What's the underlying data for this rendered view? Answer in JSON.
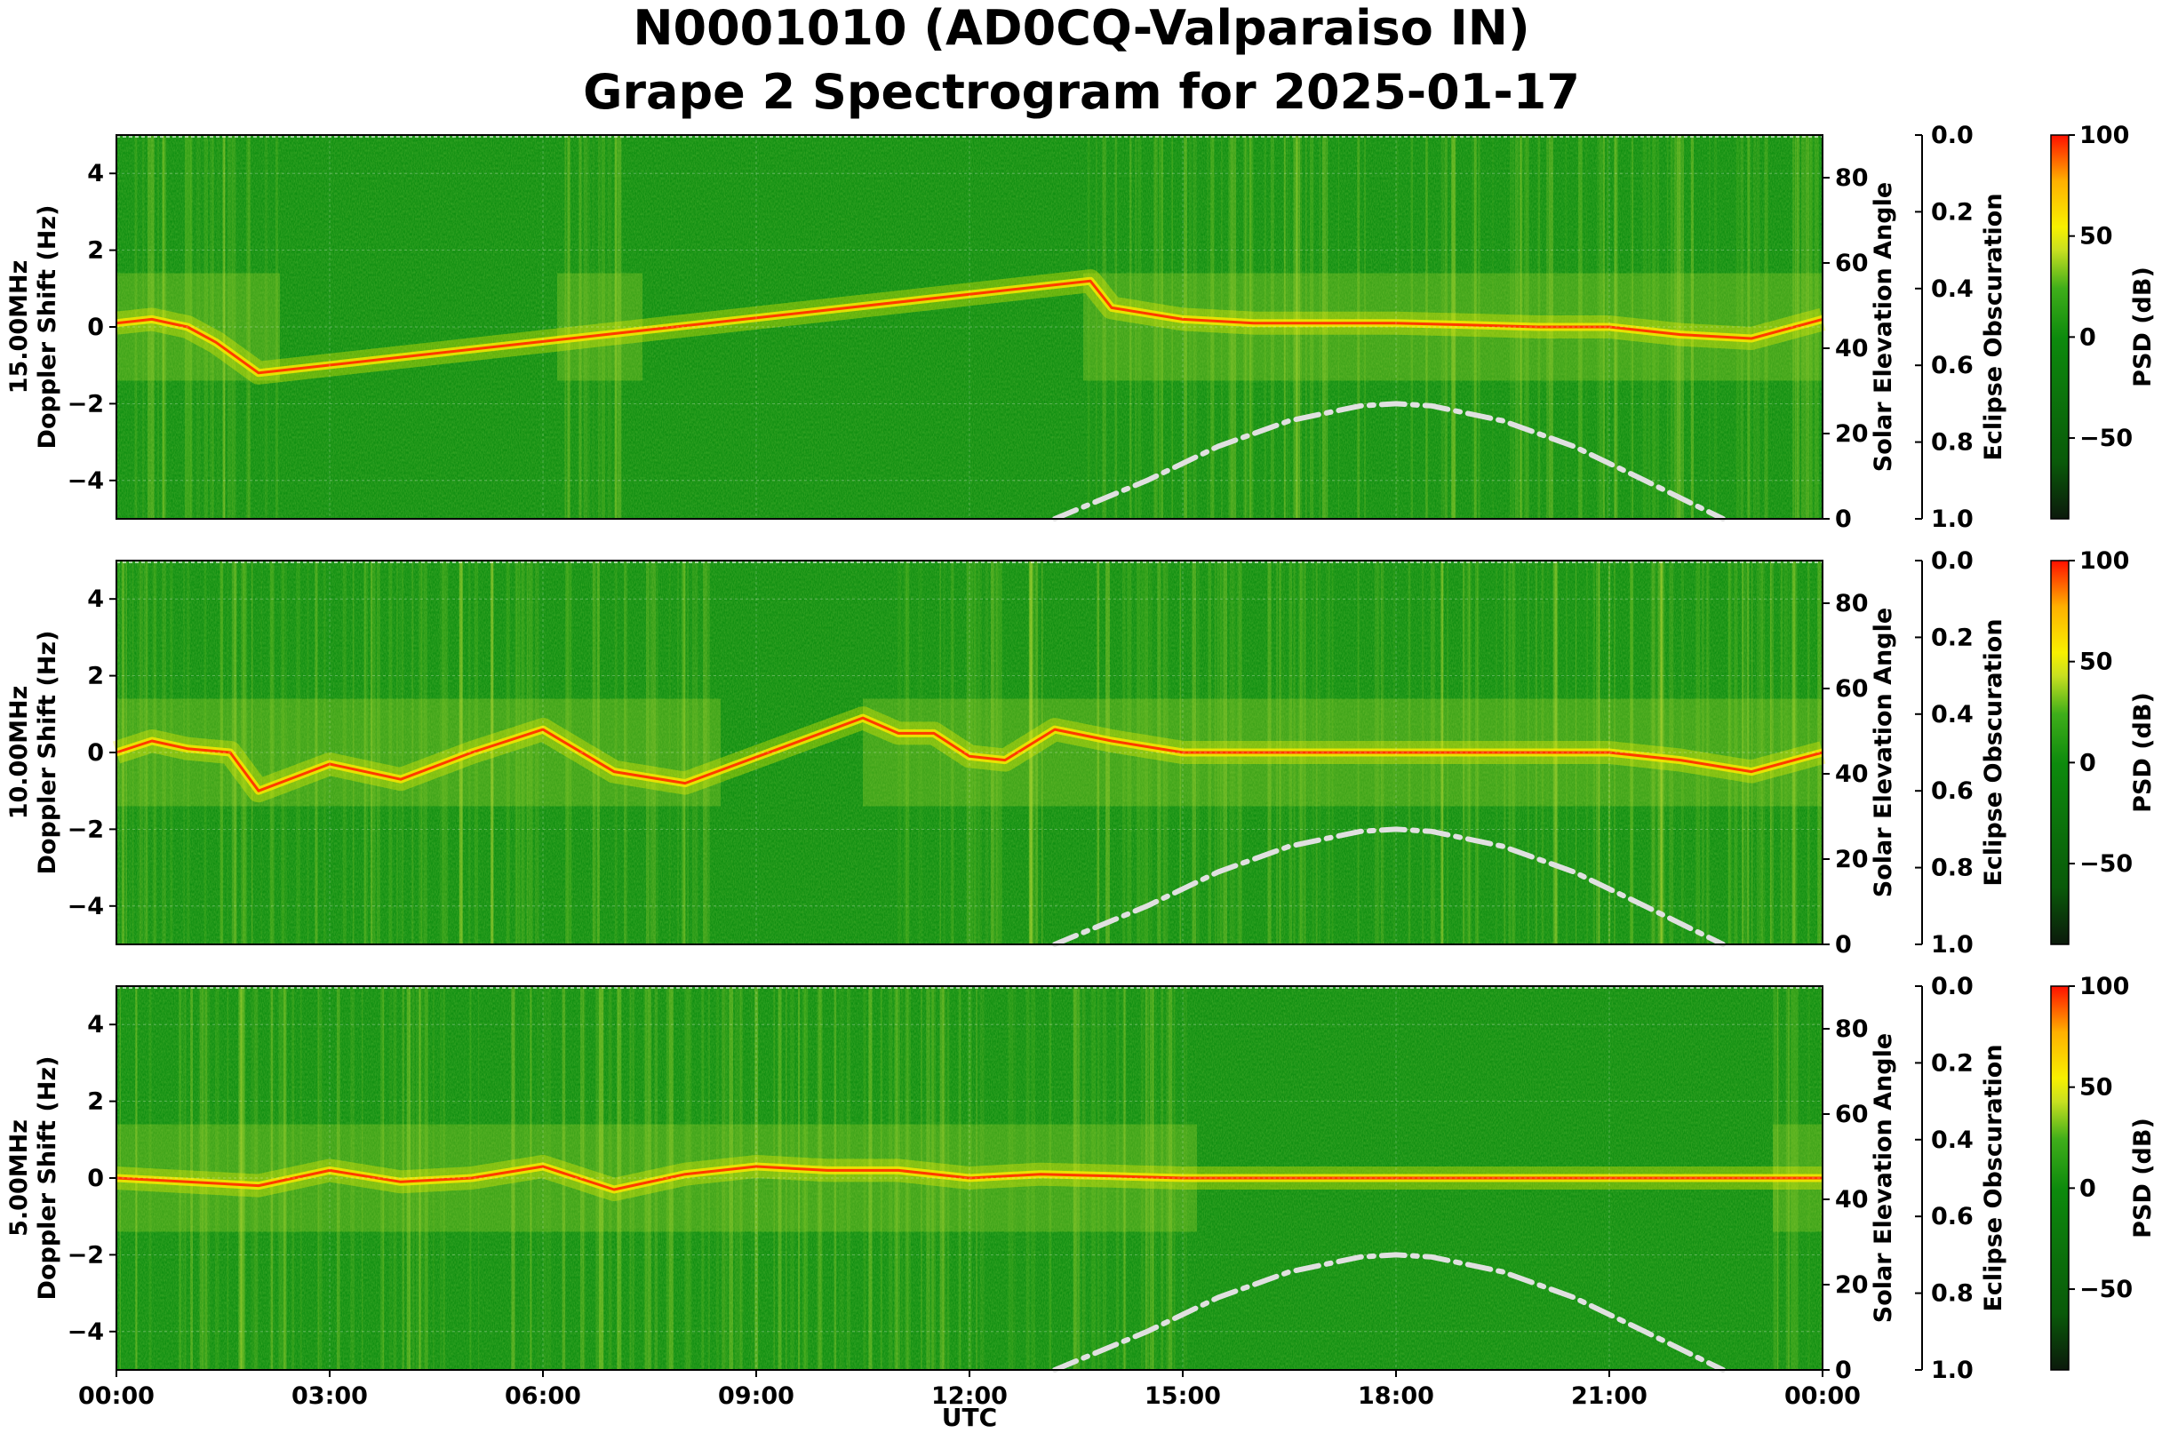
{
  "chart_data": {
    "type": "heatmap",
    "title_line1": "N0001010 (AD0CQ-Valparaiso IN)",
    "title_line2": "Grape 2 Spectrogram for 2025-01-17",
    "xlabel": "UTC",
    "x_ticks": [
      "00:00",
      "03:00",
      "06:00",
      "09:00",
      "12:00",
      "15:00",
      "18:00",
      "21:00",
      "00:00"
    ],
    "xlim_hours": [
      0,
      24
    ],
    "ylim_doppler_hz": [
      -5,
      5
    ],
    "y_ticks": [
      "4",
      "2",
      "0",
      "−2",
      "−4"
    ],
    "right_axis_label": "Solar Elevation Angle",
    "right_axis_ticks": [
      "80",
      "60",
      "40",
      "20",
      "0"
    ],
    "right_axis_range": [
      0,
      90
    ],
    "obscuration_label": "Eclipse Obscuration",
    "obscuration_ticks": [
      "0.0",
      "0.2",
      "0.4",
      "0.6",
      "0.8",
      "1.0"
    ],
    "obscuration_range": [
      0.0,
      1.0
    ],
    "colorbar_label": "PSD (dB)",
    "colorbar_ticks": [
      "100",
      "50",
      "0",
      "−50"
    ],
    "colorbar_range": [
      -90,
      100
    ],
    "colormap": [
      "#0b1a0b",
      "#0a5a0a",
      "#0d8a0d",
      "#3fae1a",
      "#c8e020",
      "#f8f000",
      "#ffb000",
      "#ff1000"
    ],
    "solar_elevation_curve": {
      "style": "dash-dot",
      "color": "#e0e0e0",
      "points": [
        [
          13.2,
          0
        ],
        [
          14.5,
          9
        ],
        [
          15.5,
          17
        ],
        [
          16.5,
          23
        ],
        [
          17.5,
          26.5
        ],
        [
          18.0,
          27
        ],
        [
          18.5,
          26.5
        ],
        [
          19.5,
          23
        ],
        [
          20.5,
          17
        ],
        [
          21.5,
          9
        ],
        [
          22.6,
          0
        ]
      ]
    },
    "panels": [
      {
        "label_line1": "15.00MHz",
        "label_line2": "Doppler Shift (Hz)",
        "trace": [
          [
            0,
            0.1
          ],
          [
            0.5,
            0.2
          ],
          [
            1,
            0
          ],
          [
            1.4,
            -0.4
          ],
          [
            2,
            -1.2
          ],
          [
            13.7,
            1.2
          ],
          [
            14,
            0.5
          ],
          [
            15,
            0.2
          ],
          [
            16,
            0.1
          ],
          [
            17,
            0.1
          ],
          [
            18,
            0.1
          ],
          [
            19,
            0.05
          ],
          [
            20,
            0
          ],
          [
            21,
            0
          ],
          [
            22,
            -0.2
          ],
          [
            23,
            -0.3
          ],
          [
            24,
            0.2
          ]
        ],
        "signal_segments": [
          [
            0,
            2.3
          ],
          [
            6.2,
            7.4
          ],
          [
            13.6,
            24
          ]
        ],
        "background_level": "mid"
      },
      {
        "label_line1": "10.00MHz",
        "label_line2": "Doppler Shift (Hz)",
        "trace": [
          [
            0,
            0
          ],
          [
            0.5,
            0.3
          ],
          [
            1,
            0.1
          ],
          [
            1.6,
            0
          ],
          [
            2,
            -1
          ],
          [
            3,
            -0.3
          ],
          [
            4,
            -0.7
          ],
          [
            5,
            0
          ],
          [
            6,
            0.6
          ],
          [
            7,
            -0.5
          ],
          [
            8,
            -0.8
          ],
          [
            10.5,
            0.9
          ],
          [
            11,
            0.5
          ],
          [
            11.5,
            0.5
          ],
          [
            12,
            -0.1
          ],
          [
            12.5,
            -0.2
          ],
          [
            13.2,
            0.6
          ],
          [
            14,
            0.3
          ],
          [
            15,
            0
          ],
          [
            16,
            0
          ],
          [
            17,
            0
          ],
          [
            18,
            0
          ],
          [
            19,
            0
          ],
          [
            20,
            0
          ],
          [
            21,
            0
          ],
          [
            22,
            -0.2
          ],
          [
            23,
            -0.5
          ],
          [
            24,
            0
          ]
        ],
        "signal_segments": [
          [
            0,
            8.5
          ],
          [
            10.5,
            24
          ]
        ],
        "background_level": "mid"
      },
      {
        "label_line1": "5.00MHz",
        "label_line2": "Doppler Shift (Hz)",
        "trace": [
          [
            0,
            0
          ],
          [
            1,
            -0.1
          ],
          [
            2,
            -0.2
          ],
          [
            3,
            0.2
          ],
          [
            4,
            -0.1
          ],
          [
            5,
            0
          ],
          [
            6,
            0.3
          ],
          [
            7,
            -0.3
          ],
          [
            8,
            0.1
          ],
          [
            9,
            0.3
          ],
          [
            10,
            0.2
          ],
          [
            11,
            0.2
          ],
          [
            12,
            0
          ],
          [
            13,
            0.1
          ],
          [
            14,
            0.05
          ],
          [
            15,
            0
          ],
          [
            16,
            0
          ],
          [
            17,
            0
          ],
          [
            18,
            0
          ],
          [
            19,
            0
          ],
          [
            20,
            0
          ],
          [
            21,
            0
          ],
          [
            22,
            0
          ],
          [
            23,
            0
          ],
          [
            24,
            0
          ]
        ],
        "signal_segments": [
          [
            0,
            15.2
          ],
          [
            23.3,
            24
          ]
        ],
        "background_level": "high-morning"
      }
    ]
  }
}
